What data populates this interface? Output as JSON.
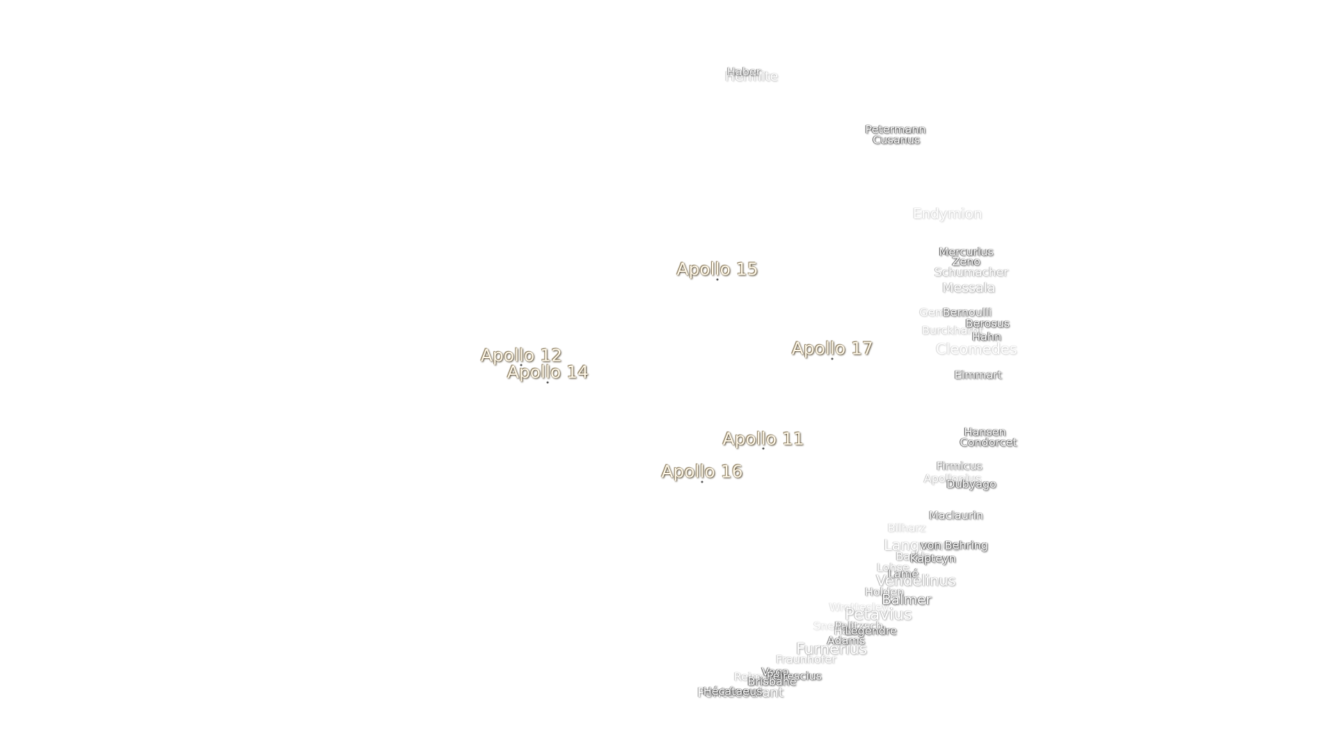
{
  "apollo_sites": [
    "Apollo 15",
    "Apollo 12",
    "Apollo 14",
    "Apollo 17",
    "Apollo 11",
    "Apollo 16"
  ],
  "craters": [
    "Haber",
    "Hermite",
    "Petermann",
    "Cusanus",
    "Endymion",
    "Mercurius",
    "Zeno",
    "Schumacher",
    "Messala",
    "Geminus",
    "Bernoulli",
    "Berosus",
    "Burckhardt",
    "Hahn",
    "Cleomedes",
    "Eimmart",
    "Hansen",
    "Condorcet",
    "Firmicus",
    "Apollonius",
    "Dubyago",
    "Maclaurin",
    "Bilharz",
    "Langrenus",
    "von Behring",
    "Barkla",
    "Kapteyn",
    "Lohse",
    "Lamé",
    "Vendelinus",
    "Holden",
    "Balmer",
    "Wrottesley",
    "Petavius",
    "Snellius",
    "Palitzsch",
    "Hase",
    "Legendre",
    "Adams",
    "Furnerius",
    "Fraunhofer",
    "Reimarus",
    "Vega",
    "Peirescius",
    "Brisbane",
    "Pontécoulant",
    "Hécataeus"
  ]
}
